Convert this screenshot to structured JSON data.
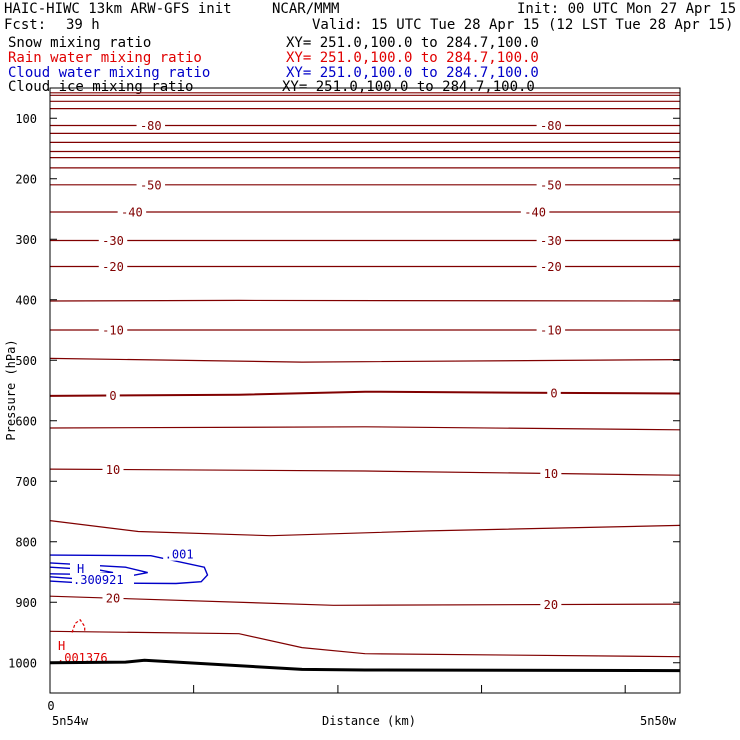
{
  "header": {
    "model": "HAIC-HIWC 13km ARW-GFS init",
    "org": "NCAR/MMM",
    "init": "Init: 00 UTC Mon 27 Apr 15",
    "fcst_label": "Fcst:",
    "fcst_value": "39 h",
    "valid": "Valid: 15 UTC Tue 28 Apr 15 (12 LST Tue 28 Apr 15)"
  },
  "legend": [
    {
      "name": "Snow mixing ratio",
      "xy": "XY= 251.0,100.0 to 284.7,100.0",
      "color": "#000000"
    },
    {
      "name": "Rain water mixing ratio",
      "xy": "XY= 251.0,100.0 to 284.7,100.0",
      "color": "#e00000"
    },
    {
      "name": "Cloud water mixing ratio",
      "xy": "XY= 251.0,100.0 to 284.7,100.0",
      "color": "#0000c8"
    },
    {
      "name": "Cloud ice mixing ratio",
      "xy": "XY= 251.0,100.0 to 284.7,100.0",
      "color": "#000000"
    }
  ],
  "chart_data": {
    "type": "line",
    "xlabel": "Distance (km)",
    "ylabel": "Pressure (hPa)",
    "x_start_label": "5n54w",
    "x_end_label": "5n50w",
    "x_origin_label": "0",
    "ylim": [
      1050,
      50
    ],
    "yticks": [
      100,
      200,
      300,
      400,
      500,
      600,
      700,
      800,
      900,
      1000
    ],
    "xlim": [
      0,
      1
    ],
    "xticks": [
      0,
      0.228,
      0.457,
      0.685,
      0.913
    ],
    "colors": {
      "temperature": "#800000",
      "cloud_water": "#0000c8",
      "rain_water": "#e00000",
      "terrain": "#000000"
    },
    "isotherms": [
      {
        "label": "",
        "points": [
          [
            0,
            58
          ],
          [
            1,
            58
          ]
        ]
      },
      {
        "label": "",
        "points": [
          [
            0,
            62
          ],
          [
            1,
            62
          ]
        ]
      },
      {
        "label": "",
        "points": [
          [
            0,
            72
          ],
          [
            1,
            72
          ]
        ]
      },
      {
        "label": "",
        "points": [
          [
            0,
            84
          ],
          [
            1,
            84
          ]
        ]
      },
      {
        "label": "-80",
        "label_at": [
          0.16,
          0.795
        ],
        "points": [
          [
            0,
            112
          ],
          [
            1,
            112
          ]
        ]
      },
      {
        "label": "",
        "points": [
          [
            0,
            125
          ],
          [
            1,
            125
          ]
        ]
      },
      {
        "label": "",
        "points": [
          [
            0,
            140
          ],
          [
            1,
            140
          ]
        ]
      },
      {
        "label": "",
        "points": [
          [
            0,
            155
          ],
          [
            1,
            155
          ]
        ]
      },
      {
        "label": "",
        "points": [
          [
            0,
            165
          ],
          [
            1,
            165
          ]
        ]
      },
      {
        "label": "",
        "points": [
          [
            0,
            182
          ],
          [
            1,
            182
          ]
        ]
      },
      {
        "label": "-50",
        "label_at": [
          0.16,
          0.795
        ],
        "points": [
          [
            0,
            210
          ],
          [
            1,
            210
          ]
        ]
      },
      {
        "label": "-40",
        "label_at": [
          0.13,
          0.77
        ],
        "points": [
          [
            0,
            255
          ],
          [
            1,
            255
          ]
        ]
      },
      {
        "label": "-30",
        "label_at": [
          0.1,
          0.795
        ],
        "points": [
          [
            0,
            302
          ],
          [
            1,
            302
          ]
        ]
      },
      {
        "label": "-20",
        "label_at": [
          0.1,
          0.795
        ],
        "points": [
          [
            0,
            345
          ],
          [
            1,
            345
          ]
        ]
      },
      {
        "label": "",
        "points": [
          [
            0,
            402
          ],
          [
            0.3,
            401
          ],
          [
            1,
            402
          ]
        ]
      },
      {
        "label": "-10",
        "label_at": [
          0.1,
          0.795
        ],
        "points": [
          [
            0,
            450
          ],
          [
            1,
            450
          ]
        ]
      },
      {
        "label": "",
        "points": [
          [
            0,
            497
          ],
          [
            0.4,
            503
          ],
          [
            1,
            499
          ]
        ]
      },
      {
        "label": "0",
        "label_at": [
          0.1,
          0.8
        ],
        "points": [
          [
            0,
            559
          ],
          [
            0.3,
            557
          ],
          [
            0.5,
            552
          ],
          [
            0.8,
            554
          ],
          [
            1,
            555
          ]
        ]
      },
      {
        "label": "",
        "points": [
          [
            0,
            612
          ],
          [
            0.5,
            610
          ],
          [
            1,
            615
          ]
        ]
      },
      {
        "label": "10",
        "label_at": [
          0.1,
          0.795
        ],
        "points": [
          [
            0,
            680
          ],
          [
            0.5,
            683
          ],
          [
            1,
            690
          ]
        ]
      },
      {
        "label": "",
        "points": [
          [
            0,
            765
          ],
          [
            0.14,
            783
          ],
          [
            0.35,
            790
          ],
          [
            0.6,
            782
          ],
          [
            1,
            773
          ]
        ]
      },
      {
        "label": "20",
        "label_at": [
          0.1,
          0.795
        ],
        "points": [
          [
            0,
            890
          ],
          [
            0.45,
            905
          ],
          [
            1,
            903
          ]
        ]
      },
      {
        "label": "",
        "points": [
          [
            0,
            948
          ],
          [
            0.3,
            952
          ],
          [
            0.4,
            975
          ],
          [
            0.5,
            985
          ],
          [
            1,
            990
          ]
        ]
      }
    ],
    "cloud_water": {
      "contour_label": ".001",
      "max_label": "H",
      "max_value": ".300921",
      "outer": [
        [
          0,
          822
        ],
        [
          0.16,
          823
        ],
        [
          0.245,
          842
        ],
        [
          0.25,
          855
        ],
        [
          0.24,
          866
        ],
        [
          0.2,
          869
        ],
        [
          0.05,
          868
        ],
        [
          0,
          865
        ]
      ],
      "inner": [
        [
          0,
          835
        ],
        [
          0.12,
          842
        ],
        [
          0.155,
          851
        ],
        [
          0.12,
          858
        ],
        [
          0.04,
          861
        ],
        [
          0,
          858
        ]
      ],
      "core": [
        [
          0,
          842
        ],
        [
          0.08,
          847
        ],
        [
          0.1,
          851
        ],
        [
          0.06,
          854
        ],
        [
          0,
          853
        ]
      ]
    },
    "rain_water": {
      "max_label": "H",
      "max_value": ".001376",
      "blob": [
        [
          0.035,
          950
        ],
        [
          0.04,
          935
        ],
        [
          0.048,
          929
        ],
        [
          0.055,
          940
        ],
        [
          0.055,
          950
        ]
      ]
    },
    "terrain": [
      [
        0,
        1000
      ],
      [
        0.12,
        999
      ],
      [
        0.15,
        996
      ],
      [
        0.4,
        1011
      ],
      [
        0.5,
        1012
      ],
      [
        1,
        1013
      ]
    ]
  }
}
